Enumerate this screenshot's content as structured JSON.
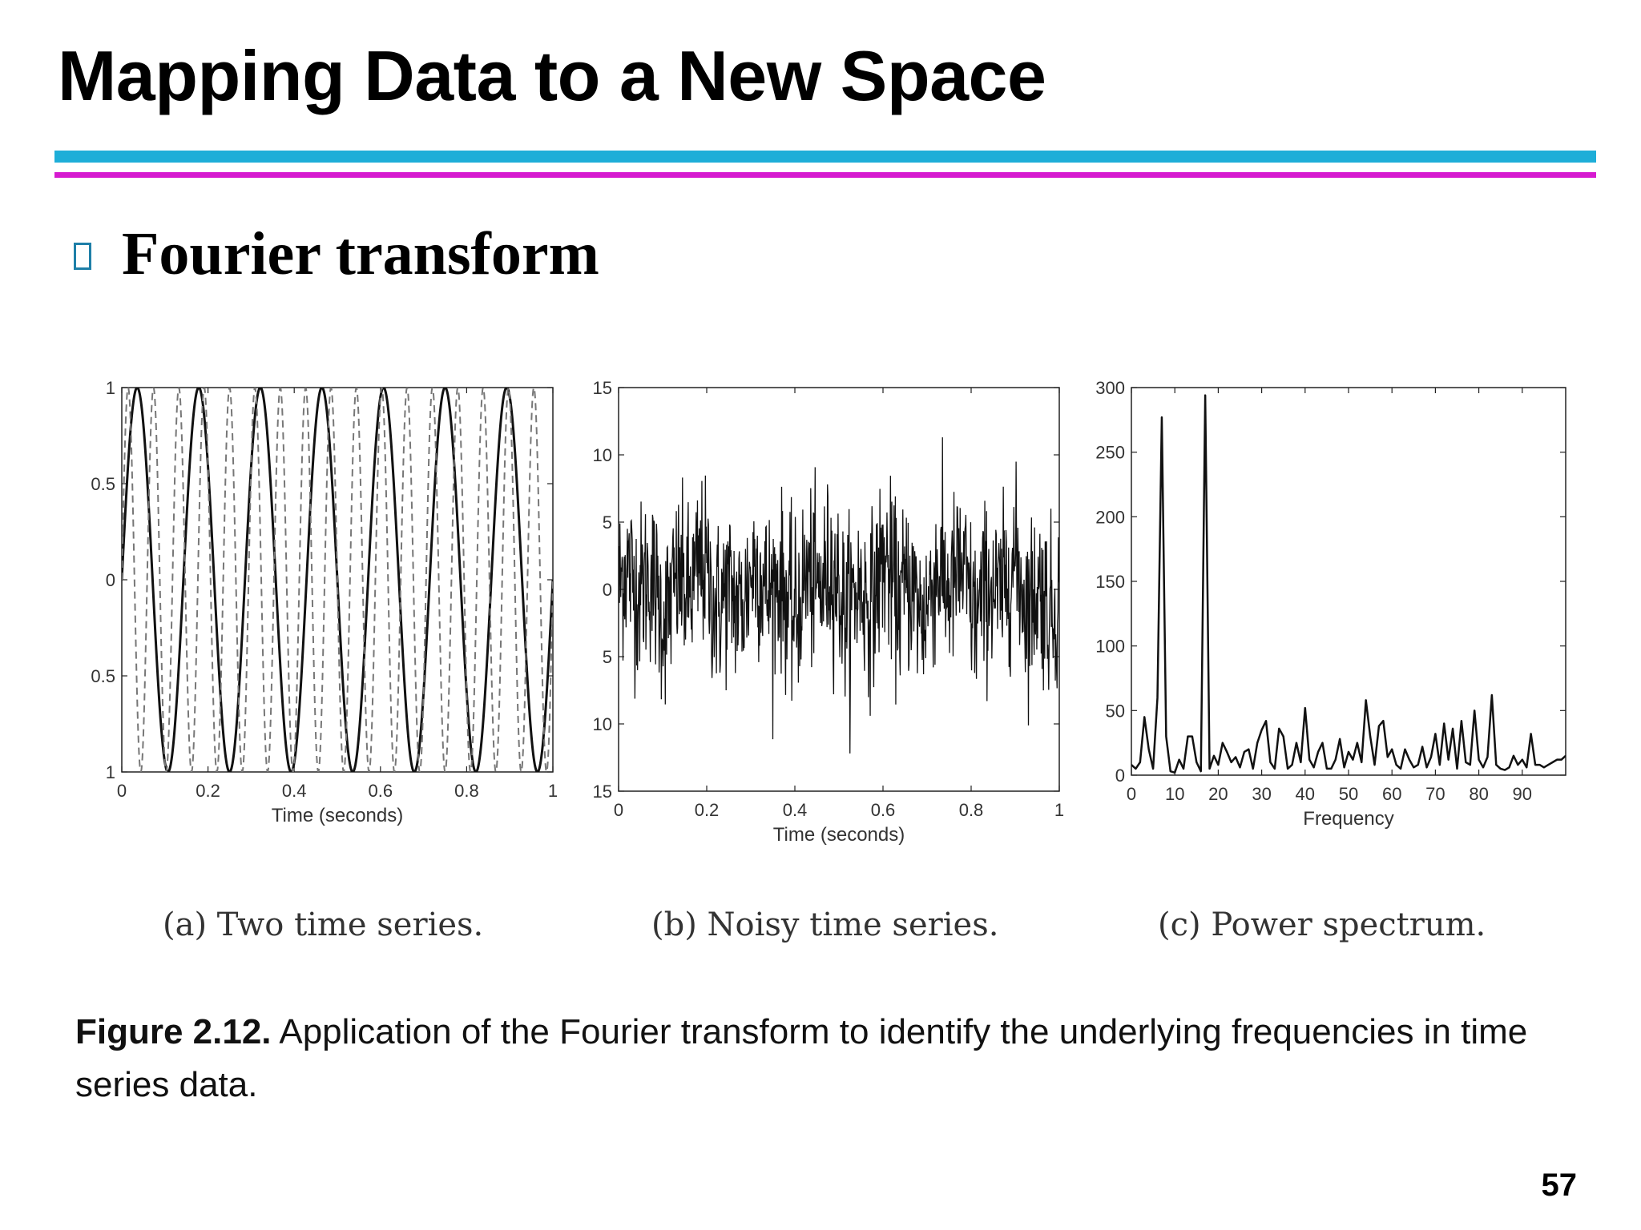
{
  "slide": {
    "title": "Mapping Data to a New Space",
    "bullet": "Fourier transform",
    "figure_label": "Figure 2.12.",
    "figure_caption": "Application of the Fourier transform to identify the underlying frequencies in time series data.",
    "page_number": "57",
    "colors": {
      "rule_top": "#1eaed8",
      "rule_bottom": "#d61ad0",
      "bullet_box": "#1e7fa8"
    }
  },
  "chart_data": [
    {
      "type": "line",
      "caption": "(a) Two time series.",
      "xlabel": "Time (seconds)",
      "ylabel": "",
      "xlim": [
        0,
        1
      ],
      "ylim": [
        -1,
        1
      ],
      "xticks": [
        0,
        0.2,
        0.4,
        0.6,
        0.8,
        1
      ],
      "xtick_labels": [
        "0",
        "0.2",
        "0.4",
        "0.6",
        "0.8",
        "1"
      ],
      "yticks": [
        1,
        0.5,
        0,
        -0.5,
        -1
      ],
      "ytick_labels": [
        "1",
        "0.5",
        "0",
        "0.5",
        "1"
      ],
      "series": [
        {
          "function": "sin",
          "frequency": 7,
          "style": "solid",
          "color": "#111111"
        },
        {
          "function": "sin",
          "frequency": 17,
          "style": "dashed",
          "color": "#777777"
        }
      ]
    },
    {
      "type": "line",
      "caption": "(b) Noisy time series.",
      "xlabel": "Time (seconds)",
      "ylabel": "",
      "xlim": [
        0,
        1
      ],
      "ylim": [
        -15,
        15
      ],
      "xticks": [
        0,
        0.2,
        0.4,
        0.6,
        0.8,
        1
      ],
      "xtick_labels": [
        "0",
        "0.2",
        "0.4",
        "0.6",
        "0.8",
        "1"
      ],
      "yticks": [
        15,
        10,
        5,
        0,
        -5,
        -10,
        -15
      ],
      "ytick_labels": [
        "15",
        "10",
        "5",
        "0",
        "5",
        "10",
        "15"
      ],
      "series": [
        {
          "signal": "sin(2π·7t) + sin(2π·17t) + noise",
          "color": "#111111"
        }
      ]
    },
    {
      "type": "line",
      "caption": "(c) Power spectrum.",
      "xlabel": "Frequency",
      "ylabel": "",
      "xlim": [
        0,
        100
      ],
      "ylim": [
        0,
        300
      ],
      "xticks": [
        0,
        10,
        20,
        30,
        40,
        50,
        60,
        70,
        80,
        90
      ],
      "xtick_labels": [
        "0",
        "10",
        "20",
        "30",
        "40",
        "50",
        "60",
        "70",
        "80",
        "90"
      ],
      "yticks": [
        0,
        50,
        100,
        150,
        200,
        250,
        300
      ],
      "ytick_labels": [
        "0",
        "50",
        "100",
        "150",
        "200",
        "250",
        "300"
      ],
      "peaks": [
        {
          "x": 7,
          "y": 277
        },
        {
          "x": 17,
          "y": 294
        }
      ],
      "series": [
        {
          "x": [
            0,
            1,
            2,
            3,
            4,
            5,
            6,
            7,
            8,
            9,
            10,
            11,
            12,
            13,
            14,
            15,
            16,
            17,
            18,
            19,
            20,
            21,
            22,
            23,
            24,
            25,
            26,
            27,
            28,
            29,
            30,
            31,
            32,
            33,
            34,
            35,
            36,
            37,
            38,
            39,
            40,
            41,
            42,
            43,
            44,
            45,
            46,
            47,
            48,
            49,
            50,
            51,
            52,
            53,
            54,
            55,
            56,
            57,
            58,
            59,
            60,
            61,
            62,
            63,
            64,
            65,
            66,
            67,
            68,
            69,
            70,
            71,
            72,
            73,
            74,
            75,
            76,
            77,
            78,
            79,
            80,
            81,
            82,
            83,
            84,
            85,
            86,
            87,
            88,
            89,
            90,
            91,
            92,
            93,
            94,
            95,
            96,
            97,
            98,
            99,
            100
          ],
          "y": [
            8,
            5,
            10,
            45,
            20,
            5,
            60,
            277,
            30,
            3,
            2,
            12,
            5,
            30,
            30,
            10,
            3,
            294,
            5,
            15,
            8,
            25,
            18,
            10,
            14,
            6,
            18,
            20,
            5,
            25,
            35,
            42,
            10,
            5,
            36,
            30,
            5,
            8,
            25,
            10,
            52,
            12,
            6,
            18,
            25,
            5,
            5,
            12,
            28,
            6,
            18,
            12,
            25,
            10,
            58,
            30,
            8,
            38,
            42,
            14,
            20,
            8,
            5,
            20,
            12,
            6,
            8,
            22,
            6,
            14,
            32,
            8,
            40,
            12,
            36,
            5,
            42,
            10,
            8,
            50,
            12,
            6,
            14,
            62,
            8,
            5,
            4,
            6,
            15,
            8,
            12,
            6,
            32,
            8,
            8,
            6,
            8,
            10,
            12,
            12,
            15
          ],
          "color": "#111111"
        }
      ]
    }
  ]
}
